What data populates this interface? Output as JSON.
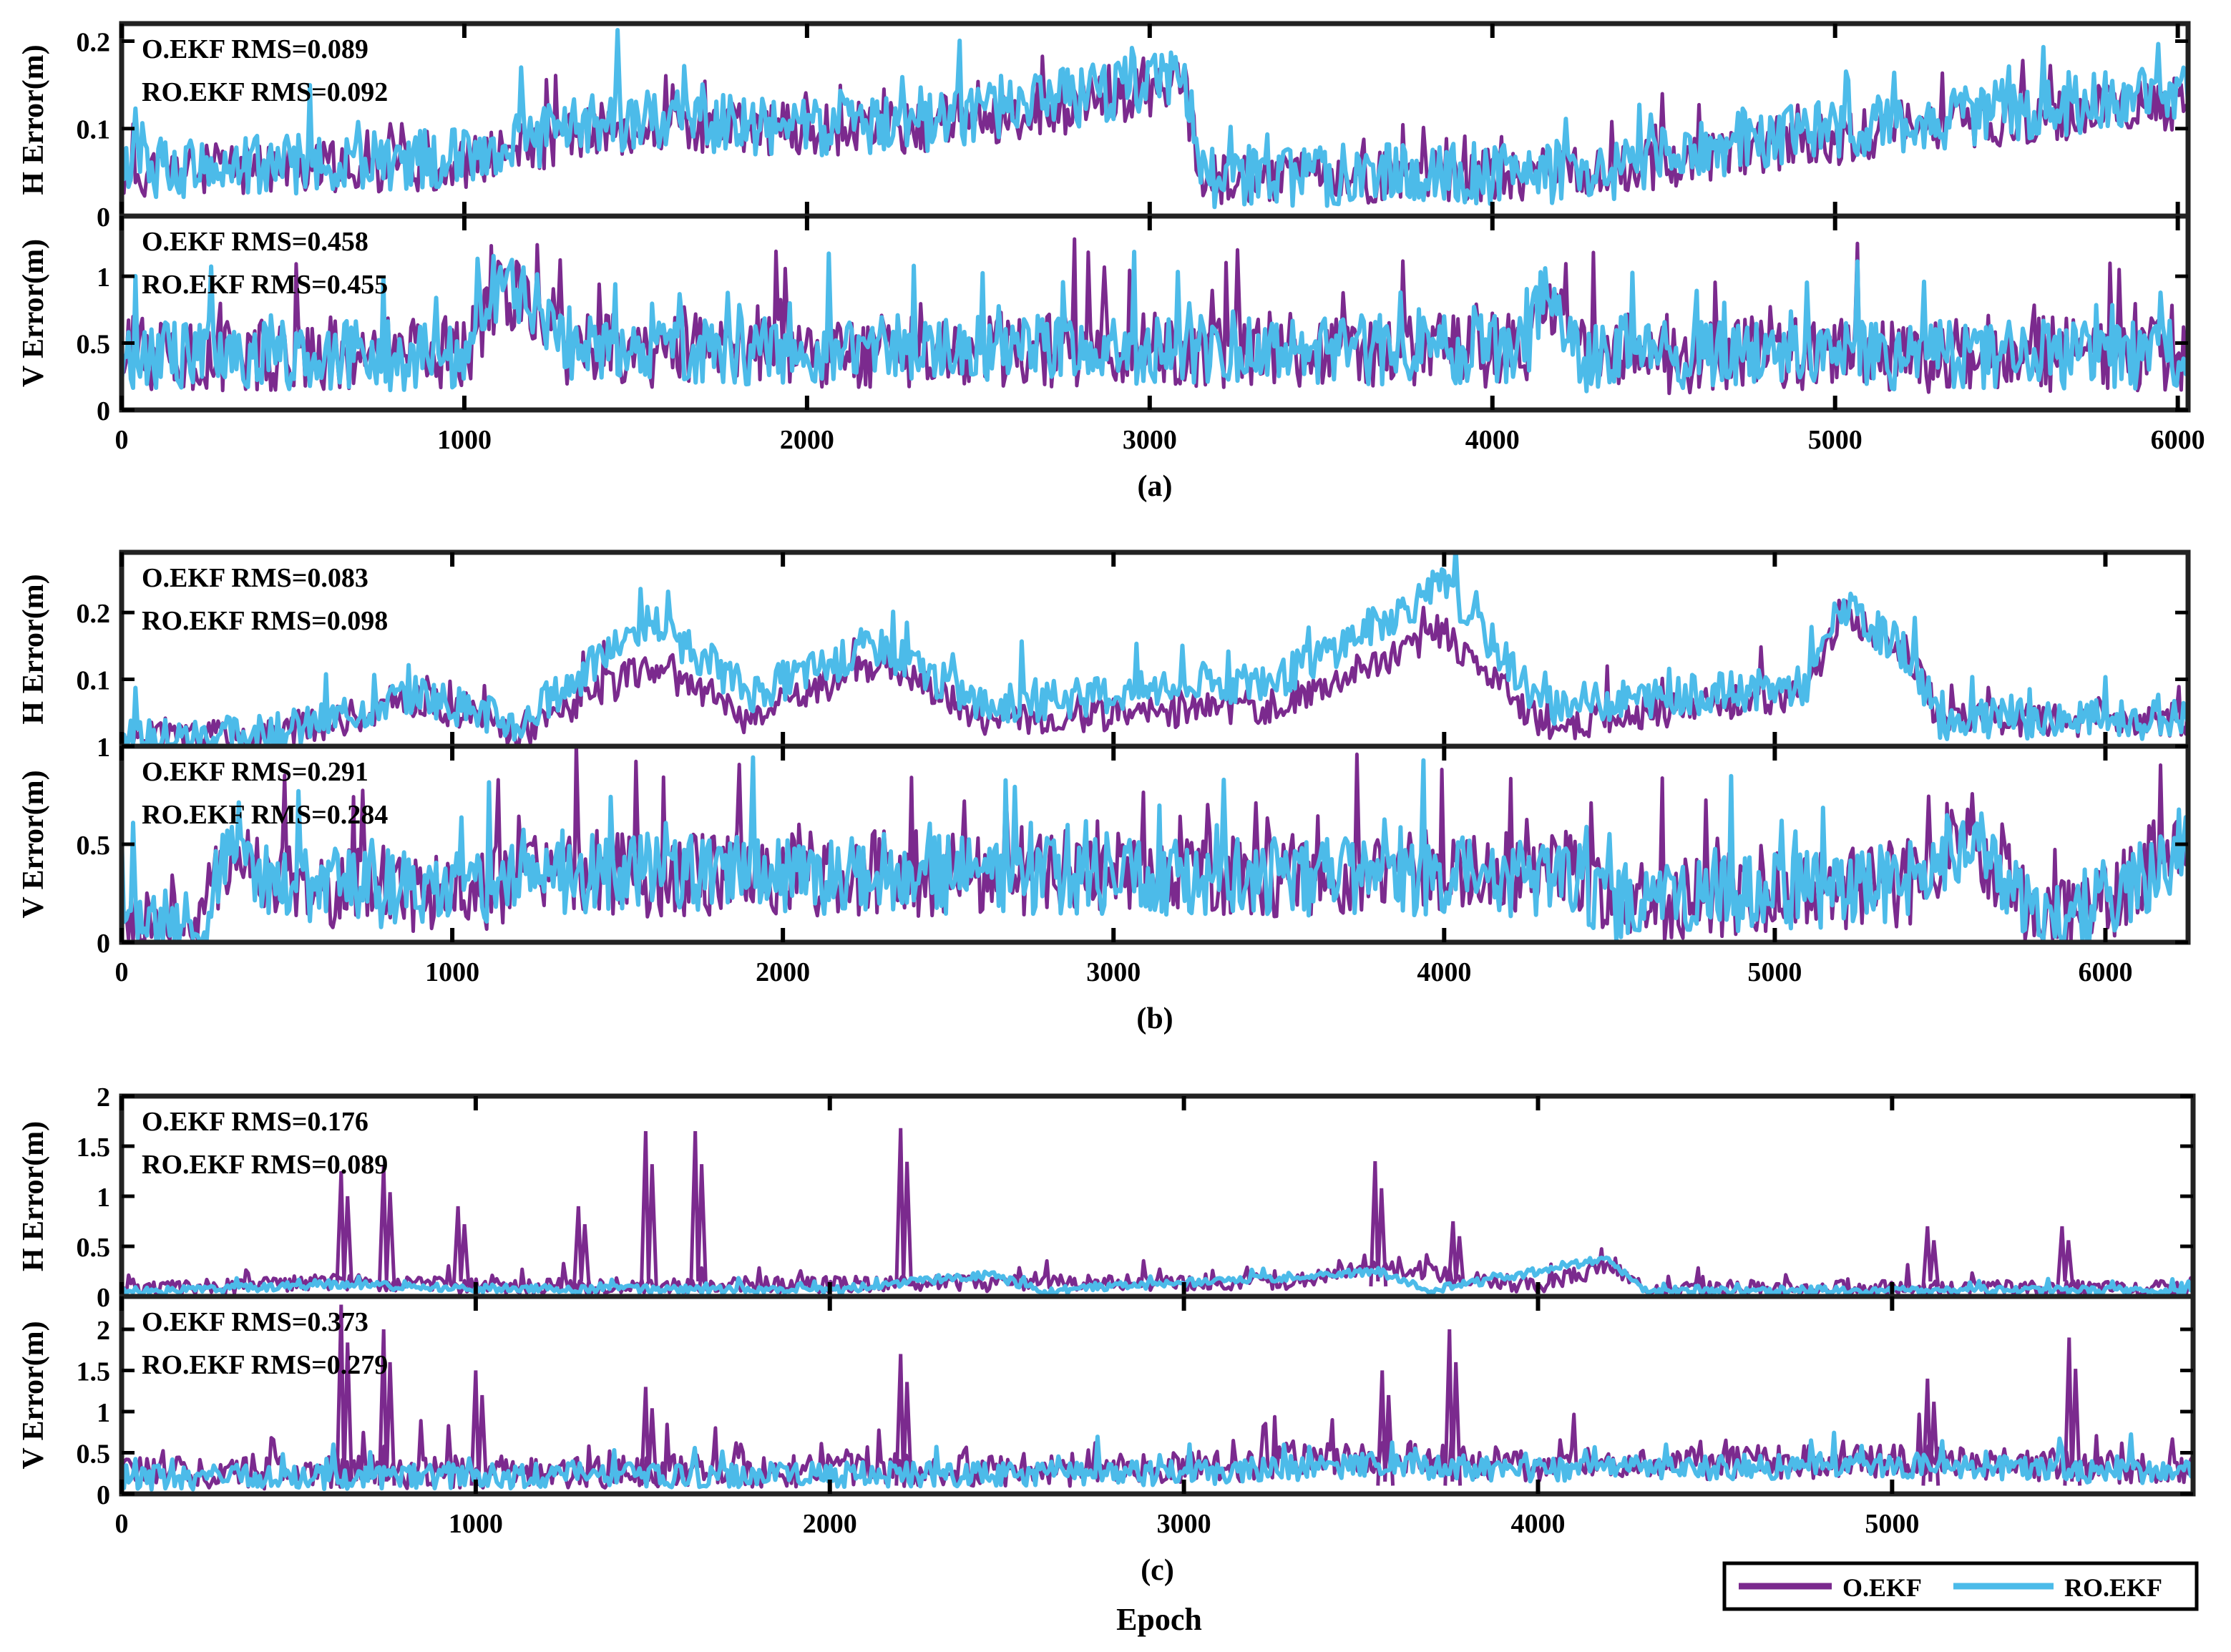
{
  "figure": {
    "xlabel": "Epoch",
    "legend": {
      "placement": "bottom-right",
      "entries": [
        "O.EKF",
        "RO.EKF"
      ]
    },
    "colors": {
      "O.EKF": "#7b2a8e",
      "RO.EKF": "#4cbbe9"
    }
  },
  "chart_data": [
    {
      "type": "line",
      "panel": "(a)",
      "subplot": "H",
      "ylabel": "H Error(m)",
      "xlim": [
        0,
        6030
      ],
      "ylim": [
        0,
        0.22
      ],
      "yticks": [
        0,
        0.1,
        0.2
      ],
      "ytick_labels": [
        "0",
        "0.1",
        "0.2"
      ],
      "annotations": [
        "O.EKF RMS=0.089",
        "RO.EKF RMS=0.092"
      ],
      "series": [
        {
          "name": "O.EKF",
          "seed": 11,
          "points": 900,
          "noise": 0.03,
          "profile": [
            [
              0,
              0.05
            ],
            [
              1000,
              0.06
            ],
            [
              1400,
              0.1
            ],
            [
              2300,
              0.1
            ],
            [
              2700,
              0.12
            ],
            [
              3100,
              0.15
            ],
            [
              3150,
              0.04
            ],
            [
              4300,
              0.05
            ],
            [
              4800,
              0.08
            ],
            [
              5500,
              0.11
            ],
            [
              6030,
              0.13
            ]
          ]
        },
        {
          "name": "RO.EKF",
          "seed": 12,
          "points": 900,
          "noise": 0.035,
          "profile": [
            [
              0,
              0.055
            ],
            [
              1000,
              0.065
            ],
            [
              1400,
              0.11
            ],
            [
              2300,
              0.1
            ],
            [
              2700,
              0.13
            ],
            [
              3100,
              0.16
            ],
            [
              3150,
              0.045
            ],
            [
              4300,
              0.05
            ],
            [
              4800,
              0.09
            ],
            [
              5500,
              0.12
            ],
            [
              6030,
              0.14
            ]
          ]
        }
      ]
    },
    {
      "type": "line",
      "panel": "(a)",
      "subplot": "V",
      "ylabel": "V Error(m)",
      "xlim": [
        0,
        6030
      ],
      "ylim": [
        0,
        1.45
      ],
      "xticks": [
        0,
        1000,
        2000,
        3000,
        4000,
        5000,
        6000
      ],
      "xtick_labels": [
        "0",
        "1000",
        "2000",
        "3000",
        "4000",
        "5000",
        "6000"
      ],
      "yticks": [
        0,
        0.5,
        1
      ],
      "ytick_labels": [
        "0",
        "0.5",
        "1"
      ],
      "annotations": [
        "O.EKF RMS=0.458",
        "RO.EKF RMS=0.455"
      ],
      "caption": "(a)",
      "series": [
        {
          "name": "O.EKF",
          "seed": 21,
          "points": 900,
          "noise": 0.28,
          "profile": [
            [
              0,
              0.42
            ],
            [
              1000,
              0.42
            ],
            [
              1100,
              0.9
            ],
            [
              1200,
              0.8
            ],
            [
              1300,
              0.45
            ],
            [
              4100,
              0.45
            ],
            [
              4150,
              0.85
            ],
            [
              4250,
              0.4
            ],
            [
              6030,
              0.42
            ]
          ]
        },
        {
          "name": "RO.EKF",
          "seed": 22,
          "points": 900,
          "noise": 0.26,
          "profile": [
            [
              0,
              0.42
            ],
            [
              1000,
              0.4
            ],
            [
              1100,
              0.95
            ],
            [
              1200,
              0.8
            ],
            [
              1300,
              0.45
            ],
            [
              4100,
              0.45
            ],
            [
              4150,
              0.9
            ],
            [
              4250,
              0.4
            ],
            [
              6030,
              0.42
            ]
          ]
        }
      ]
    },
    {
      "type": "line",
      "panel": "(b)",
      "subplot": "H",
      "ylabel": "H Error(m)",
      "xlim": [
        0,
        6250
      ],
      "ylim": [
        0,
        0.29
      ],
      "yticks": [
        0.1,
        0.2
      ],
      "ytick_labels": [
        "0.1",
        "0.2"
      ],
      "axis_floor_label": "1",
      "annotations": [
        "O.EKF RMS=0.083",
        "RO.EKF RMS=0.098"
      ],
      "series": [
        {
          "name": "O.EKF",
          "seed": 31,
          "points": 900,
          "noise": 0.025,
          "profile": [
            [
              0,
              0.01
            ],
            [
              500,
              0.02
            ],
            [
              900,
              0.07
            ],
            [
              1200,
              0.02
            ],
            [
              1600,
              0.12
            ],
            [
              1900,
              0.04
            ],
            [
              2300,
              0.13
            ],
            [
              2600,
              0.04
            ],
            [
              3500,
              0.06
            ],
            [
              4000,
              0.17
            ],
            [
              4300,
              0.03
            ],
            [
              5100,
              0.08
            ],
            [
              5200,
              0.2
            ],
            [
              5400,
              0.14
            ],
            [
              5500,
              0.04
            ],
            [
              6250,
              0.04
            ]
          ]
        },
        {
          "name": "RO.EKF",
          "seed": 32,
          "points": 900,
          "noise": 0.03,
          "profile": [
            [
              0,
              0.01
            ],
            [
              500,
              0.02
            ],
            [
              900,
              0.08
            ],
            [
              1200,
              0.03
            ],
            [
              1600,
              0.19
            ],
            [
              1900,
              0.08
            ],
            [
              2300,
              0.15
            ],
            [
              2600,
              0.06
            ],
            [
              3500,
              0.1
            ],
            [
              4000,
              0.24
            ],
            [
              4300,
              0.06
            ],
            [
              5100,
              0.09
            ],
            [
              5200,
              0.21
            ],
            [
              5400,
              0.14
            ],
            [
              5500,
              0.04
            ],
            [
              6250,
              0.04
            ]
          ]
        }
      ]
    },
    {
      "type": "line",
      "panel": "(b)",
      "subplot": "V",
      "ylabel": "V Error(m)",
      "xlim": [
        0,
        6250
      ],
      "ylim": [
        0,
        1.0
      ],
      "xticks": [
        0,
        1000,
        2000,
        3000,
        4000,
        5000,
        6000
      ],
      "xtick_labels": [
        "0",
        "1000",
        "2000",
        "3000",
        "4000",
        "5000",
        "6000"
      ],
      "yticks": [
        0,
        0.5,
        1
      ],
      "ytick_labels": [
        "0",
        "0.5",
        "1"
      ],
      "annotations": [
        "O.EKF RMS=0.291",
        "RO.EKF RMS=0.284"
      ],
      "caption": "(b)",
      "series": [
        {
          "name": "O.EKF",
          "seed": 41,
          "points": 900,
          "noise": 0.22,
          "profile": [
            [
              0,
              0.08
            ],
            [
              250,
              0.05
            ],
            [
              300,
              0.45
            ],
            [
              500,
              0.3
            ],
            [
              1100,
              0.25
            ],
            [
              1200,
              0.35
            ],
            [
              4400,
              0.35
            ],
            [
              4500,
              0.2
            ],
            [
              5400,
              0.3
            ],
            [
              5600,
              0.55
            ],
            [
              5800,
              0.05
            ],
            [
              6250,
              0.45
            ]
          ]
        },
        {
          "name": "RO.EKF",
          "seed": 42,
          "points": 900,
          "noise": 0.2,
          "profile": [
            [
              0,
              0.08
            ],
            [
              250,
              0.05
            ],
            [
              300,
              0.45
            ],
            [
              500,
              0.3
            ],
            [
              1100,
              0.25
            ],
            [
              1200,
              0.35
            ],
            [
              4400,
              0.33
            ],
            [
              4500,
              0.2
            ],
            [
              5400,
              0.3
            ],
            [
              5600,
              0.55
            ],
            [
              5800,
              0.05
            ],
            [
              6250,
              0.45
            ]
          ]
        }
      ]
    },
    {
      "type": "line",
      "panel": "(c)",
      "subplot": "H",
      "ylabel": "H Error(m)",
      "xlim": [
        0,
        5850
      ],
      "ylim": [
        0,
        2.0
      ],
      "yticks": [
        0,
        0.5,
        1,
        1.5,
        2
      ],
      "ytick_labels": [
        "0",
        "0.5",
        "1",
        "1.5",
        "2"
      ],
      "annotations": [
        "O.EKF RMS=0.176",
        "RO.EKF RMS=0.089"
      ],
      "spikes_O.EKF": [
        [
          620,
          1.25
        ],
        [
          740,
          1.3
        ],
        [
          950,
          0.9
        ],
        [
          1290,
          0.9
        ],
        [
          1480,
          1.65
        ],
        [
          1620,
          1.65
        ],
        [
          2200,
          1.68
        ],
        [
          3540,
          1.35
        ],
        [
          3760,
          0.75
        ],
        [
          5100,
          0.7
        ],
        [
          5480,
          0.7
        ]
      ],
      "series": [
        {
          "name": "O.EKF",
          "seed": 51,
          "points": 900,
          "noise": 0.08,
          "profile": [
            [
              0,
              0.05
            ],
            [
              600,
              0.15
            ],
            [
              1000,
              0.1
            ],
            [
              2000,
              0.12
            ],
            [
              3300,
              0.15
            ],
            [
              3550,
              0.3
            ],
            [
              4000,
              0.1
            ],
            [
              4200,
              0.3
            ],
            [
              4300,
              0.08
            ],
            [
              5850,
              0.08
            ]
          ]
        },
        {
          "name": "RO.EKF",
          "seed": 52,
          "points": 900,
          "noise": 0.04,
          "profile": [
            [
              0,
              0.04
            ],
            [
              600,
              0.12
            ],
            [
              1000,
              0.08
            ],
            [
              2000,
              0.06
            ],
            [
              2450,
              0.22
            ],
            [
              2600,
              0.05
            ],
            [
              3550,
              0.25
            ],
            [
              3700,
              0.06
            ],
            [
              4200,
              0.38
            ],
            [
              4300,
              0.06
            ],
            [
              5850,
              0.06
            ]
          ]
        }
      ]
    },
    {
      "type": "line",
      "panel": "(c)",
      "subplot": "V",
      "ylabel": "V Error(m)",
      "xlim": [
        0,
        5850
      ],
      "ylim": [
        0,
        2.4
      ],
      "xticks": [
        0,
        1000,
        2000,
        3000,
        4000,
        5000
      ],
      "xtick_labels": [
        "0",
        "1000",
        "2000",
        "3000",
        "4000",
        "5000"
      ],
      "yticks": [
        0,
        0.5,
        1,
        1.5,
        2
      ],
      "ytick_labels": [
        "0",
        "0.5",
        "1",
        "1.5",
        "2"
      ],
      "annotations": [
        "O.EKF RMS=0.373",
        "RO.EKF RMS=0.279"
      ],
      "caption": "(c)",
      "spikes_O.EKF": [
        [
          620,
          2.3
        ],
        [
          740,
          2.0
        ],
        [
          1000,
          1.5
        ],
        [
          1480,
          1.3
        ],
        [
          2200,
          1.7
        ],
        [
          3560,
          1.5
        ],
        [
          3750,
          2.0
        ],
        [
          5100,
          1.4
        ],
        [
          5500,
          1.9
        ]
      ],
      "series": [
        {
          "name": "O.EKF",
          "seed": 61,
          "points": 900,
          "noise": 0.2,
          "profile": [
            [
              0,
              0.25
            ],
            [
              3000,
              0.3
            ],
            [
              3500,
              0.45
            ],
            [
              4000,
              0.35
            ],
            [
              5000,
              0.4
            ],
            [
              5850,
              0.3
            ]
          ]
        },
        {
          "name": "RO.EKF",
          "seed": 62,
          "points": 900,
          "noise": 0.15,
          "profile": [
            [
              0,
              0.2
            ],
            [
              3000,
              0.25
            ],
            [
              3500,
              0.35
            ],
            [
              4000,
              0.3
            ],
            [
              5000,
              0.35
            ],
            [
              5850,
              0.25
            ]
          ]
        }
      ]
    }
  ]
}
